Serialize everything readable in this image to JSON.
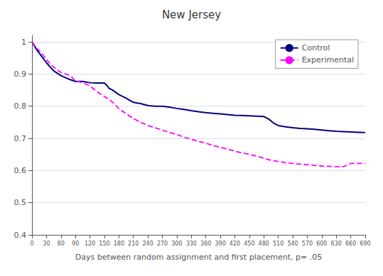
{
  "chart_data": {
    "type": "line",
    "title": "New Jersey",
    "xlabel": "Days between random assignment and first placement, p= .05",
    "xlim": [
      0,
      690
    ],
    "xticks": [
      0,
      30,
      60,
      90,
      120,
      150,
      180,
      210,
      240,
      270,
      300,
      330,
      360,
      390,
      420,
      450,
      480,
      510,
      540,
      570,
      600,
      630,
      660,
      690
    ],
    "ylim": [
      0.4,
      1.02
    ],
    "yticks": [
      0.4,
      0.5,
      0.6,
      0.7,
      0.8,
      0.9,
      1
    ],
    "grid": true,
    "legend": "upper right",
    "series": [
      {
        "name": "Control",
        "color": "#000080",
        "line_style": "solid",
        "x": [
          0,
          10,
          20,
          30,
          45,
          60,
          75,
          90,
          105,
          120,
          135,
          150,
          155,
          160,
          165,
          180,
          195,
          210,
          225,
          240,
          255,
          270,
          285,
          300,
          315,
          330,
          345,
          360,
          375,
          390,
          405,
          420,
          435,
          450,
          465,
          480,
          490,
          500,
          510,
          525,
          540,
          555,
          570,
          585,
          600,
          615,
          630,
          645,
          660,
          675,
          690
        ],
        "values": [
          1.0,
          0.975,
          0.955,
          0.935,
          0.91,
          0.895,
          0.885,
          0.877,
          0.877,
          0.873,
          0.872,
          0.872,
          0.865,
          0.855,
          0.852,
          0.836,
          0.825,
          0.812,
          0.808,
          0.802,
          0.8,
          0.8,
          0.797,
          0.793,
          0.79,
          0.786,
          0.783,
          0.78,
          0.778,
          0.776,
          0.774,
          0.772,
          0.771,
          0.77,
          0.769,
          0.768,
          0.76,
          0.748,
          0.74,
          0.736,
          0.733,
          0.731,
          0.73,
          0.728,
          0.726,
          0.724,
          0.722,
          0.721,
          0.72,
          0.719,
          0.718
        ]
      },
      {
        "name": "Experimental",
        "color": "#FF00FF",
        "line_style": "dashed",
        "x": [
          0,
          10,
          20,
          30,
          40,
          50,
          60,
          70,
          80,
          90,
          100,
          110,
          120,
          135,
          150,
          165,
          180,
          195,
          210,
          225,
          240,
          255,
          270,
          285,
          300,
          315,
          330,
          345,
          360,
          375,
          390,
          405,
          420,
          435,
          450,
          465,
          480,
          495,
          510,
          525,
          540,
          555,
          570,
          585,
          600,
          615,
          630,
          645,
          660,
          675,
          690
        ],
        "values": [
          1.0,
          0.98,
          0.965,
          0.945,
          0.928,
          0.916,
          0.905,
          0.9,
          0.895,
          0.878,
          0.875,
          0.87,
          0.863,
          0.845,
          0.83,
          0.815,
          0.793,
          0.776,
          0.762,
          0.75,
          0.74,
          0.733,
          0.726,
          0.718,
          0.712,
          0.704,
          0.697,
          0.691,
          0.685,
          0.678,
          0.672,
          0.667,
          0.66,
          0.655,
          0.65,
          0.645,
          0.638,
          0.632,
          0.628,
          0.625,
          0.622,
          0.62,
          0.618,
          0.616,
          0.614,
          0.613,
          0.612,
          0.612,
          0.622,
          0.622,
          0.622
        ]
      }
    ]
  }
}
